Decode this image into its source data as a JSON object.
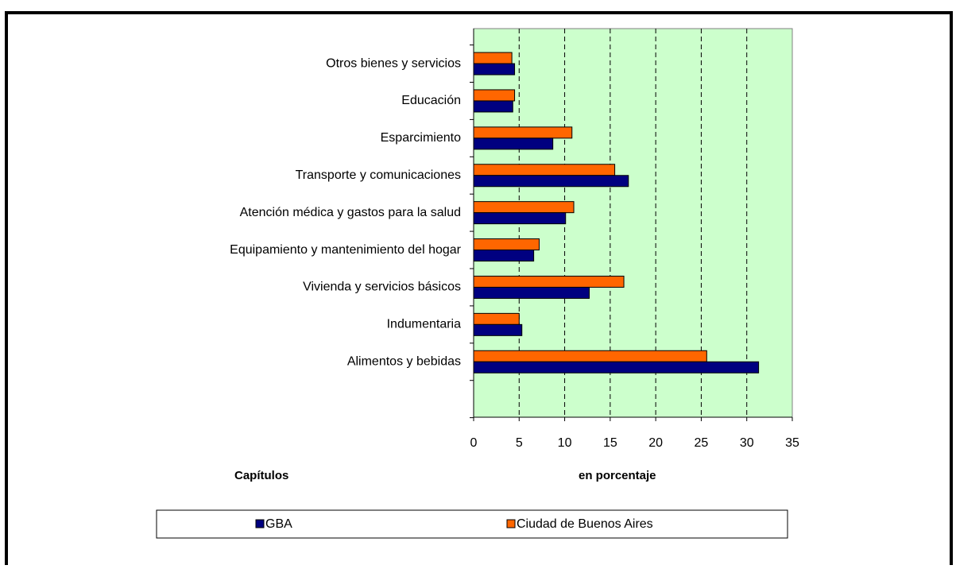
{
  "chart_data": {
    "type": "bar",
    "orientation": "horizontal",
    "categories": [
      "Otros bienes y servicios",
      "Educación",
      "Esparcimiento",
      "Transporte y comunicaciones",
      "Atención médica y gastos para la salud",
      "Equipamiento y mantenimiento del hogar",
      "Vivienda y servicios básicos",
      "Indumentaria",
      "Alimentos y bebidas",
      null
    ],
    "series": [
      {
        "name": "Ciudad de Buenos Aires",
        "color": "#ff6600",
        "values": [
          4.2,
          4.5,
          10.8,
          15.5,
          11.0,
          7.2,
          16.5,
          5.0,
          25.6,
          null
        ]
      },
      {
        "name": "GBA",
        "color": "#000080",
        "values": [
          4.5,
          4.3,
          8.7,
          17.0,
          10.1,
          6.6,
          12.7,
          5.3,
          31.3,
          null
        ]
      }
    ],
    "legend_order": [
      1,
      0
    ],
    "x_label": "en porcentaje",
    "y_label": "Capítulos",
    "xlim": [
      0,
      35
    ],
    "xticks": [
      0,
      5,
      10,
      15,
      20,
      25,
      30,
      35
    ],
    "grid": true,
    "plot_background": "#ccffcc"
  }
}
